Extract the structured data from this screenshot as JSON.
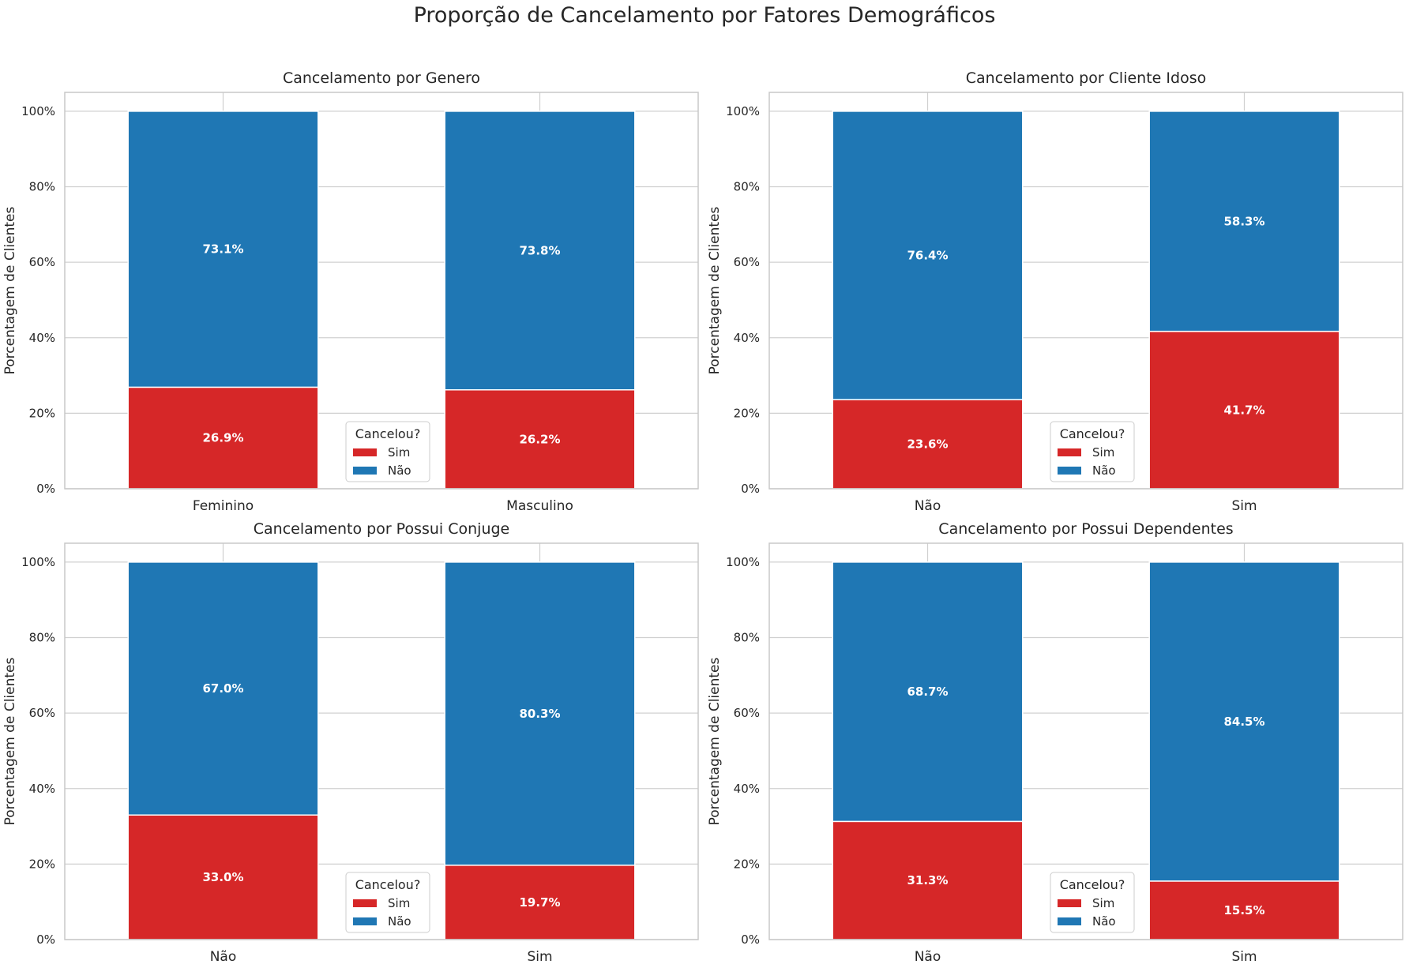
{
  "figure": {
    "title": "Proporção de Cancelamento por Fatores Demográficos"
  },
  "colors": {
    "sim": "#d62728",
    "nao": "#1f77b4",
    "grid": "#d0d0d0",
    "spine": "#c8c8c8",
    "text": "#262626"
  },
  "chart_data": [
    {
      "type": "bar",
      "stacked": true,
      "title": "Cancelamento por Genero",
      "ylabel": "Porcentagem de Clientes",
      "xlabel": "",
      "ylim": [
        0,
        105
      ],
      "yticks": [
        "0%",
        "20%",
        "40%",
        "60%",
        "80%",
        "100%"
      ],
      "categories": [
        "Feminino",
        "Masculino"
      ],
      "series": [
        {
          "name": "Sim",
          "values": [
            26.9,
            26.2
          ],
          "labels": [
            "26.9%",
            "26.2%"
          ]
        },
        {
          "name": "Não",
          "values": [
            73.1,
            73.8
          ],
          "labels": [
            "73.1%",
            "73.8%"
          ]
        }
      ],
      "legend": {
        "title": "Cancelou?",
        "location": "lower-center"
      },
      "grid": true
    },
    {
      "type": "bar",
      "stacked": true,
      "title": "Cancelamento por Cliente Idoso",
      "ylabel": "Porcentagem de Clientes",
      "xlabel": "",
      "ylim": [
        0,
        105
      ],
      "yticks": [
        "0%",
        "20%",
        "40%",
        "60%",
        "80%",
        "100%"
      ],
      "categories": [
        "Não",
        "Sim"
      ],
      "series": [
        {
          "name": "Sim",
          "values": [
            23.6,
            41.7
          ],
          "labels": [
            "23.6%",
            "41.7%"
          ]
        },
        {
          "name": "Não",
          "values": [
            76.4,
            58.3
          ],
          "labels": [
            "76.4%",
            "58.3%"
          ]
        }
      ],
      "legend": {
        "title": "Cancelou?",
        "location": "lower-center"
      },
      "grid": true
    },
    {
      "type": "bar",
      "stacked": true,
      "title": "Cancelamento por Possui Conjuge",
      "ylabel": "Porcentagem de Clientes",
      "xlabel": "",
      "ylim": [
        0,
        105
      ],
      "yticks": [
        "0%",
        "20%",
        "40%",
        "60%",
        "80%",
        "100%"
      ],
      "categories": [
        "Não",
        "Sim"
      ],
      "series": [
        {
          "name": "Sim",
          "values": [
            33.0,
            19.7
          ],
          "labels": [
            "33.0%",
            "19.7%"
          ]
        },
        {
          "name": "Não",
          "values": [
            67.0,
            80.3
          ],
          "labels": [
            "67.0%",
            "80.3%"
          ]
        }
      ],
      "legend": {
        "title": "Cancelou?",
        "location": "lower-center"
      },
      "grid": true
    },
    {
      "type": "bar",
      "stacked": true,
      "title": "Cancelamento por Possui Dependentes",
      "ylabel": "Porcentagem de Clientes",
      "xlabel": "",
      "ylim": [
        0,
        105
      ],
      "yticks": [
        "0%",
        "20%",
        "40%",
        "60%",
        "80%",
        "100%"
      ],
      "categories": [
        "Não",
        "Sim"
      ],
      "series": [
        {
          "name": "Sim",
          "values": [
            31.3,
            15.5
          ],
          "labels": [
            "31.3%",
            "15.5%"
          ]
        },
        {
          "name": "Não",
          "values": [
            68.7,
            84.5
          ],
          "labels": [
            "68.7%",
            "84.5%"
          ]
        }
      ],
      "legend": {
        "title": "Cancelou?",
        "location": "lower-center"
      },
      "grid": true
    }
  ]
}
